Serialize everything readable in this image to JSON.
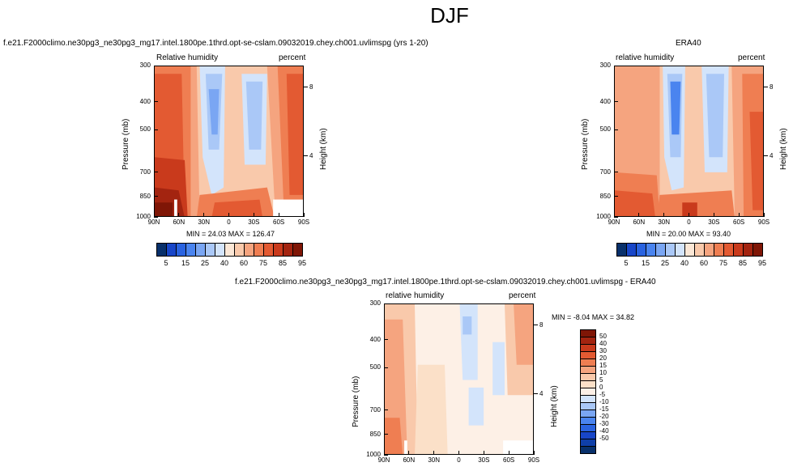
{
  "page_title": "DJF",
  "colors": {
    "abs_scale": [
      "#08306b",
      "#1846c8",
      "#2a63e0",
      "#4a84ef",
      "#7aa6f3",
      "#aac8f7",
      "#d3e4fb",
      "#fbe7d6",
      "#f9c9ab",
      "#f5a47f",
      "#ef7e52",
      "#e35a32",
      "#c93a1c",
      "#a32410",
      "#7f1606"
    ],
    "diff_scale": [
      "#08306b",
      "#0f3fa8",
      "#1846c8",
      "#2a63e0",
      "#4a84ef",
      "#7aa6f3",
      "#aac8f7",
      "#d3e4fb",
      "#fdf0e6",
      "#fbe0c8",
      "#f9c9ab",
      "#f5a47f",
      "#ef7e52",
      "#e35a32",
      "#c93a1c",
      "#a32410",
      "#7f1606"
    ]
  },
  "chart_data": [
    {
      "type": "heatmap",
      "id": "model",
      "subtitle": "f.e21.F2000climo.ne30pg3_ne30pg3_mg17.intel.1800pe.1thrd.opt-se-cslam.09032019.chey.ch001.uvlimspg (yrs 1-20)",
      "left_label": "Relative humidity",
      "right_label": "percent",
      "ylabel": "Pressure (mb)",
      "ylabel_right": "Height (km)",
      "x_ticks": [
        "90N",
        "60N",
        "30N",
        "0",
        "30S",
        "60S",
        "90S"
      ],
      "y_ticks": [
        "300",
        "400",
        "500",
        "700",
        "850",
        "1000"
      ],
      "height_ticks": [
        "8",
        "4"
      ],
      "min_max": "MIN =  24.03   MAX = 126.47",
      "colorbar_labels": [
        "5",
        "15",
        "25",
        "40",
        "60",
        "75",
        "85",
        "95"
      ],
      "ylim": [
        1000,
        300
      ],
      "xlim": [
        90,
        -90
      ]
    },
    {
      "type": "heatmap",
      "id": "obs",
      "subtitle": "ERA40",
      "left_label": "relative humidity",
      "right_label": "percent",
      "ylabel": "Pressure (mb)",
      "ylabel_right": "Height (km)",
      "x_ticks": [
        "90N",
        "60N",
        "30N",
        "0",
        "30S",
        "60S",
        "90S"
      ],
      "y_ticks": [
        "300",
        "400",
        "500",
        "700",
        "850",
        "1000"
      ],
      "height_ticks": [
        "8",
        "4"
      ],
      "min_max": "MIN =  20.00   MAX =  93.40",
      "colorbar_labels": [
        "5",
        "15",
        "25",
        "40",
        "60",
        "75",
        "85",
        "95"
      ],
      "ylim": [
        1000,
        300
      ],
      "xlim": [
        90,
        -90
      ]
    },
    {
      "type": "heatmap",
      "id": "diff",
      "subtitle": "f.e21.F2000climo.ne30pg3_ne30pg3_mg17.intel.1800pe.1thrd.opt-se-cslam.09032019.chey.ch001.uvlimspg - ERA40",
      "left_label": "relative humidity",
      "right_label": "percent",
      "ylabel": "Pressure (mb)",
      "ylabel_right": "Height (km)",
      "x_ticks": [
        "90N",
        "60N",
        "30N",
        "0",
        "30S",
        "60S",
        "90S"
      ],
      "y_ticks": [
        "300",
        "400",
        "500",
        "700",
        "850",
        "1000"
      ],
      "height_ticks": [
        "8",
        "4"
      ],
      "min_max": "MIN =  -8.04   MAX =  34.82",
      "colorbar_labels": [
        "50",
        "40",
        "30",
        "20",
        "15",
        "10",
        "5",
        "0",
        "-5",
        "-10",
        "-15",
        "-20",
        "-30",
        "-40",
        "-50"
      ],
      "ylim": [
        1000,
        300
      ],
      "xlim": [
        90,
        -90
      ]
    }
  ]
}
